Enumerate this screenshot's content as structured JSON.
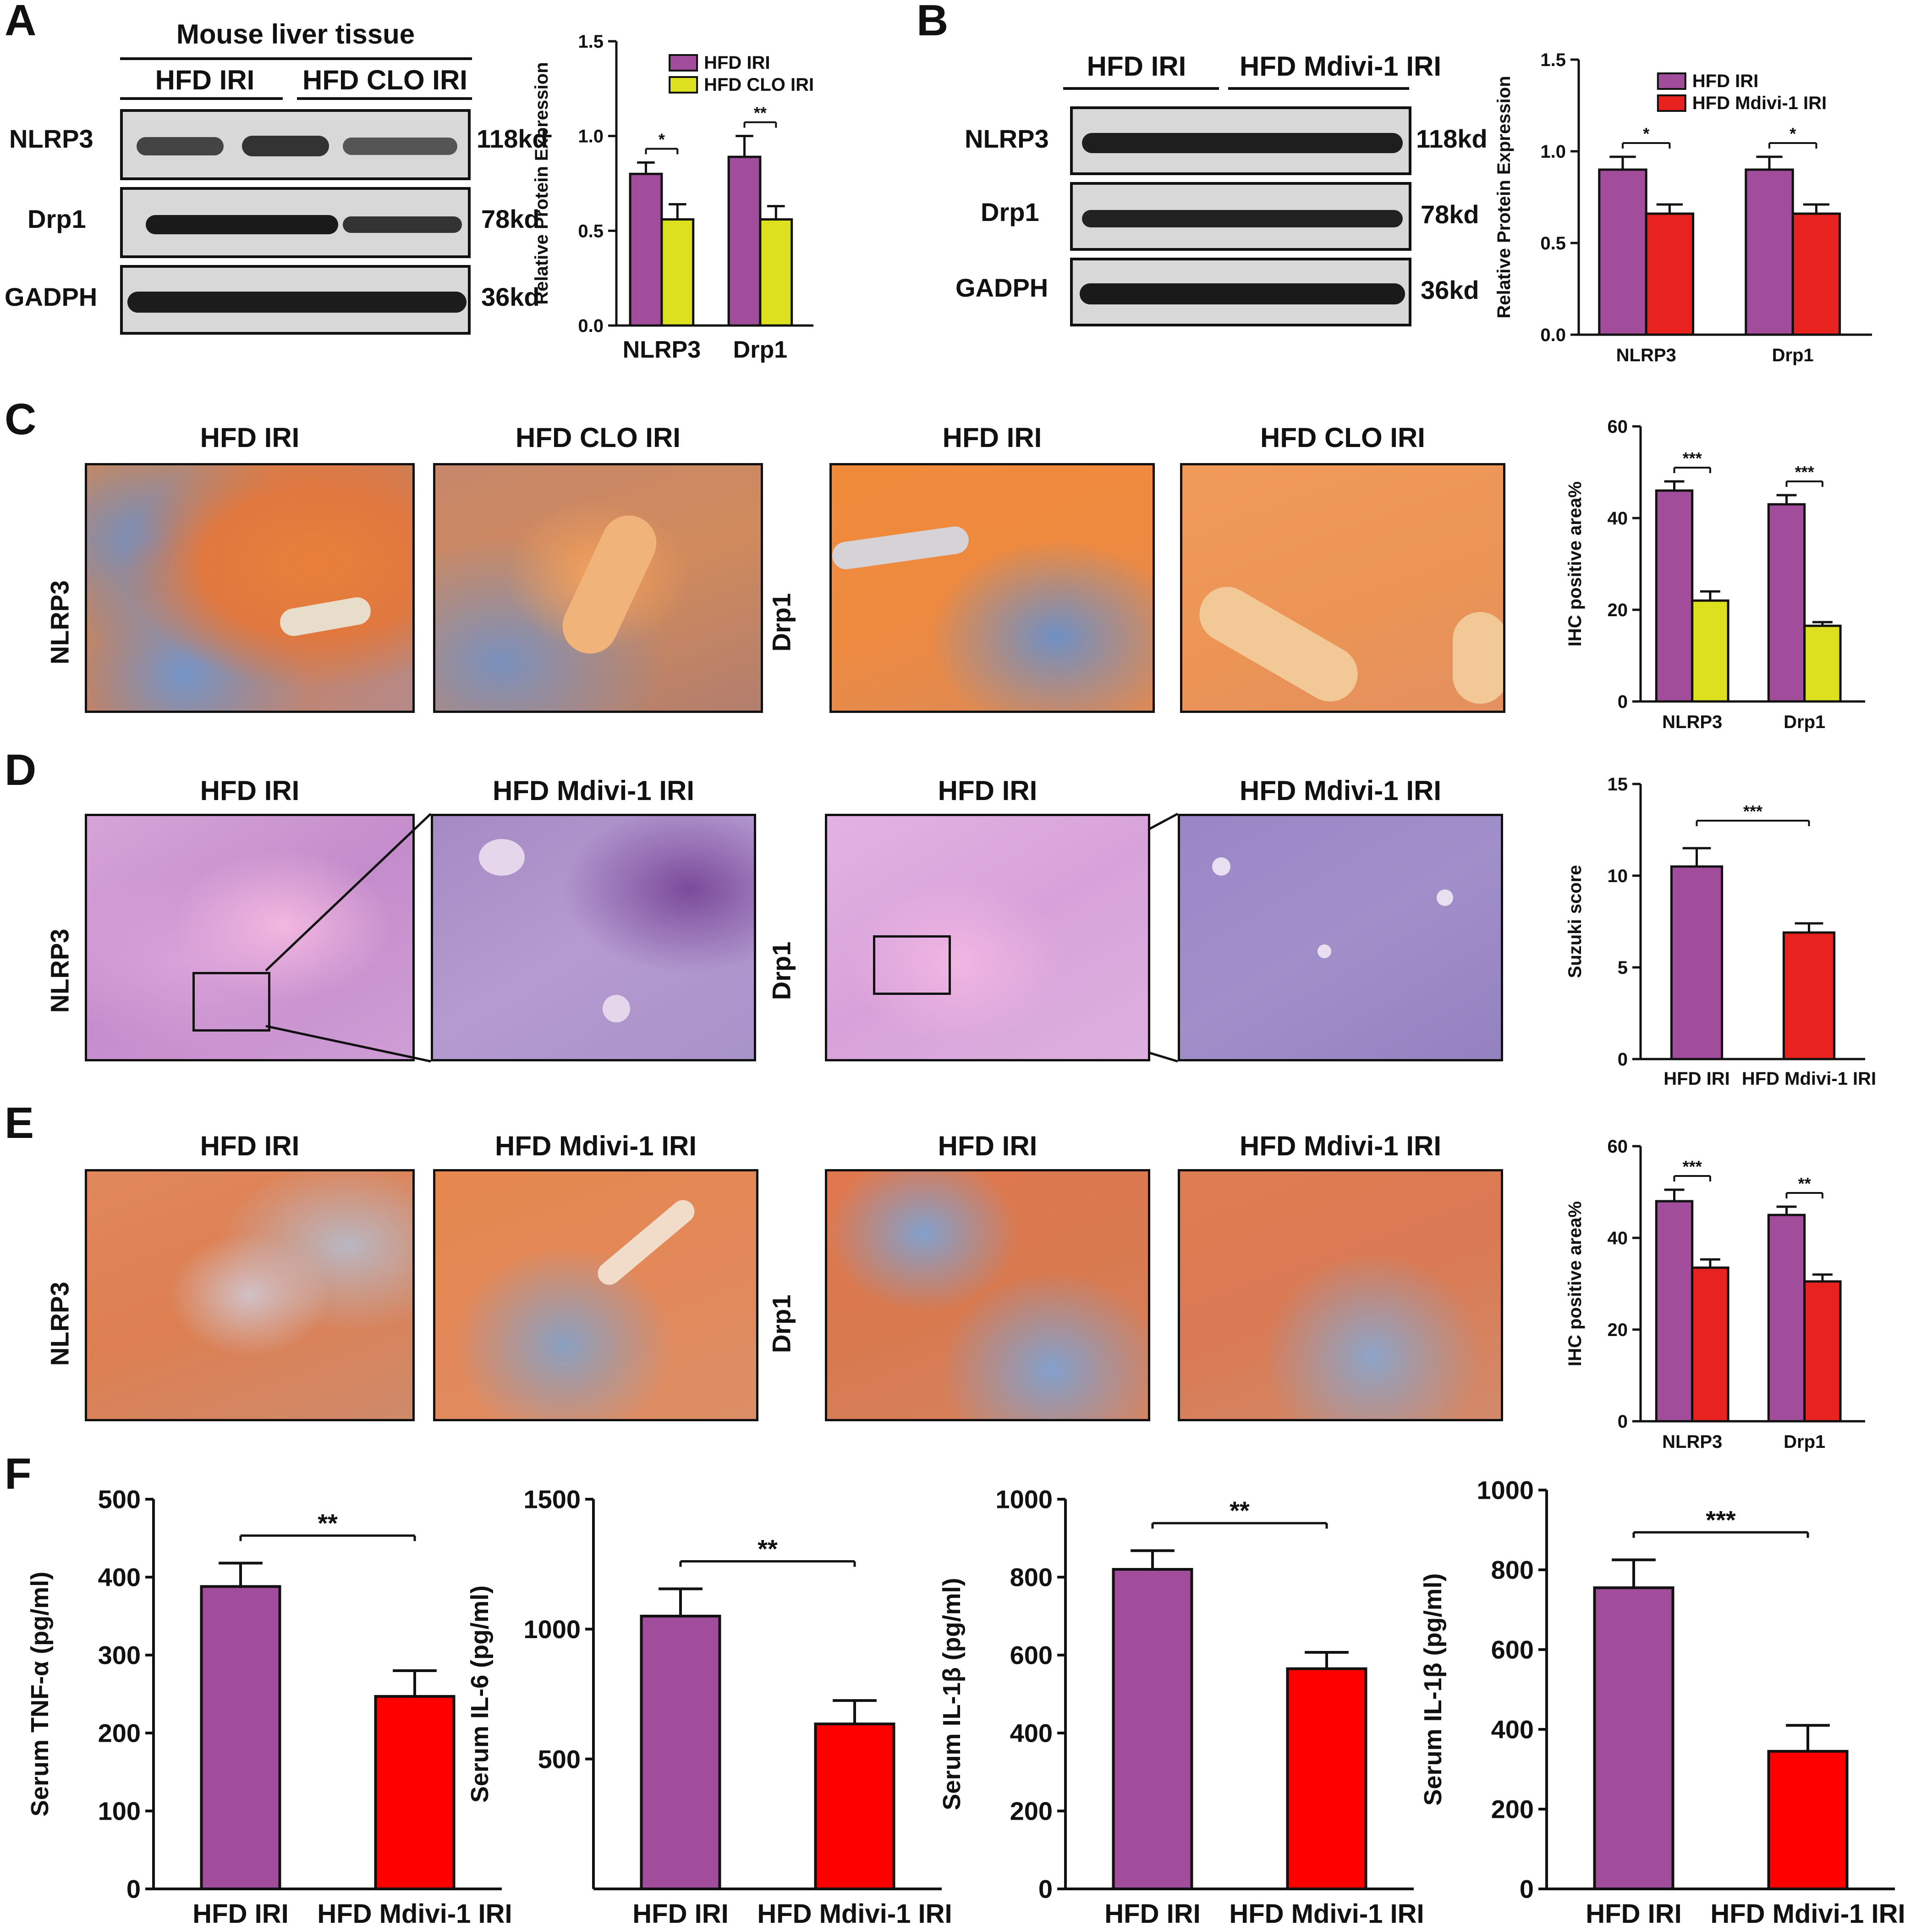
{
  "colors": {
    "hfd_iri": "#a24d9c",
    "hfd_clo_iri": "#dde01f",
    "hfd_mdivi_iri": "#e8231f",
    "hfd_mdivi_iri_f": "#fe0000"
  },
  "panelA": {
    "letter": "A",
    "tissue_title": "Mouse liver tissue",
    "group1": "HFD IRI",
    "group2": "HFD CLO IRI",
    "rows": [
      {
        "label": "NLRP3",
        "kd": "118kd"
      },
      {
        "label": "Drp1",
        "kd": "78kd"
      },
      {
        "label": "GADPH",
        "kd": "36kd"
      }
    ]
  },
  "panelB": {
    "letter": "B",
    "group1": "HFD IRI",
    "group2": "HFD Mdivi-1 IRI",
    "rows": [
      {
        "label": "NLRP3",
        "kd": "118kd"
      },
      {
        "label": "Drp1",
        "kd": "78kd"
      },
      {
        "label": "GADPH",
        "kd": "36kd"
      }
    ]
  },
  "panelC": {
    "letter": "C",
    "titles": [
      "HFD IRI",
      "HFD CLO IRI",
      "HFD IRI",
      "HFD CLO IRI"
    ],
    "row_left": "NLRP3",
    "row_right": "Drp1"
  },
  "panelD": {
    "letter": "D",
    "titles": [
      "HFD IRI",
      "HFD Mdivi-1 IRI",
      "HFD IRI",
      "HFD Mdivi-1 IRI"
    ],
    "row_left": "NLRP3",
    "row_right": "Drp1"
  },
  "panelE": {
    "letter": "E",
    "titles": [
      "HFD IRI",
      "HFD Mdivi-1 IRI",
      "HFD IRI",
      "HFD Mdivi-1 IRI"
    ],
    "row_left": "NLRP3",
    "row_right": "Drp1"
  },
  "panelF": {
    "letter": "F"
  },
  "chart_data": [
    {
      "id": "A",
      "type": "bar",
      "categories": [
        "NLRP3",
        "Drp1"
      ],
      "ylabel": "Relative Protein Expression",
      "ylim": [
        0,
        1.5
      ],
      "yticks": [
        "0.0",
        "0.5",
        "1.0",
        "1.5"
      ],
      "series": [
        {
          "name": "HFD IRI",
          "values": [
            0.8,
            0.89
          ],
          "errors": [
            0.06,
            0.11
          ]
        },
        {
          "name": "HFD CLO IRI",
          "values": [
            0.56,
            0.56
          ],
          "errors": [
            0.08,
            0.07
          ]
        }
      ],
      "significance": [
        "*",
        "**"
      ],
      "legend": "top-right"
    },
    {
      "id": "B",
      "type": "bar",
      "categories": [
        "NLRP3",
        "Drp1"
      ],
      "ylabel": "Relative Protein Expression",
      "ylim": [
        0,
        1.5
      ],
      "yticks": [
        "0.0",
        "0.5",
        "1.0",
        "1.5"
      ],
      "series": [
        {
          "name": "HFD IRI",
          "values": [
            0.9,
            0.9
          ],
          "errors": [
            0.07,
            0.07
          ]
        },
        {
          "name": "HFD Mdivi-1 IRI",
          "values": [
            0.66,
            0.66
          ],
          "errors": [
            0.05,
            0.05
          ]
        }
      ],
      "significance": [
        "*",
        "*"
      ],
      "legend": "top-right"
    },
    {
      "id": "C",
      "type": "bar",
      "categories": [
        "NLRP3",
        "Drp1"
      ],
      "ylabel": "IHC positive area%",
      "ylim": [
        0,
        60
      ],
      "yticks": [
        "0",
        "20",
        "40",
        "60"
      ],
      "series": [
        {
          "values": [
            46,
            43
          ],
          "errors": [
            2,
            2
          ]
        },
        {
          "values": [
            22,
            16.5
          ],
          "errors": [
            2,
            0.8
          ]
        }
      ],
      "significance": [
        "***",
        "***"
      ]
    },
    {
      "id": "D",
      "type": "bar",
      "categories": [
        "HFD IRI",
        "HFD Mdivi-1 IRI"
      ],
      "ylabel": "Suzuki score",
      "ylim": [
        0,
        15
      ],
      "yticks": [
        "0",
        "5",
        "10",
        "15"
      ],
      "values": [
        10.5,
        6.9
      ],
      "errors": [
        1.0,
        0.5
      ],
      "significance": [
        "***"
      ]
    },
    {
      "id": "E",
      "type": "bar",
      "categories": [
        "NLRP3",
        "Drp1"
      ],
      "ylabel": "IHC positive area%",
      "ylim": [
        0,
        60
      ],
      "yticks": [
        "0",
        "20",
        "40",
        "60"
      ],
      "series": [
        {
          "values": [
            48,
            45
          ],
          "errors": [
            2.5,
            1.8
          ]
        },
        {
          "values": [
            33.5,
            30.5
          ],
          "errors": [
            1.8,
            1.5
          ]
        }
      ],
      "significance": [
        "***",
        "**"
      ]
    },
    {
      "id": "F1",
      "type": "bar",
      "categories": [
        "HFD IRI",
        "HFD Mdivi-1 IRI"
      ],
      "ylabel": "Serum TNF-α (pg/ml)",
      "ylim": [
        0,
        500
      ],
      "yticks": [
        "0",
        "100",
        "200",
        "300",
        "400",
        "500"
      ],
      "values": [
        388,
        247
      ],
      "errors": [
        30,
        33
      ],
      "significance": [
        "**"
      ]
    },
    {
      "id": "F2",
      "type": "bar",
      "categories": [
        "HFD IRI",
        "HFD Mdivi-1 IRI"
      ],
      "ylabel": "Serum IL-6 (pg/ml)",
      "ylim": [
        0,
        1500
      ],
      "yticks": [
        "500",
        "1000",
        "1500"
      ],
      "values": [
        1050,
        635
      ],
      "errors": [
        105,
        90
      ],
      "significance": [
        "**"
      ]
    },
    {
      "id": "F3",
      "type": "bar",
      "categories": [
        "HFD IRI",
        "HFD Mdivi-1 IRI"
      ],
      "ylabel": "Serum IL-1β (pg/ml)",
      "ylim": [
        0,
        1000
      ],
      "yticks": [
        "0",
        "200",
        "400",
        "600",
        "800",
        "1000"
      ],
      "values": [
        820,
        565
      ],
      "errors": [
        48,
        42
      ],
      "significance": [
        "**"
      ]
    },
    {
      "id": "F4",
      "type": "bar",
      "categories": [
        "HFD IRI",
        "HFD Mdivi-1 IRI"
      ],
      "ylabel": "Serum IL-1β (pg/ml)",
      "ylim": [
        0,
        1000
      ],
      "yticks": [
        "0",
        "200",
        "400",
        "600",
        "800",
        "1000"
      ],
      "values": [
        755,
        345
      ],
      "errors": [
        70,
        65
      ],
      "significance": [
        "***"
      ]
    }
  ]
}
